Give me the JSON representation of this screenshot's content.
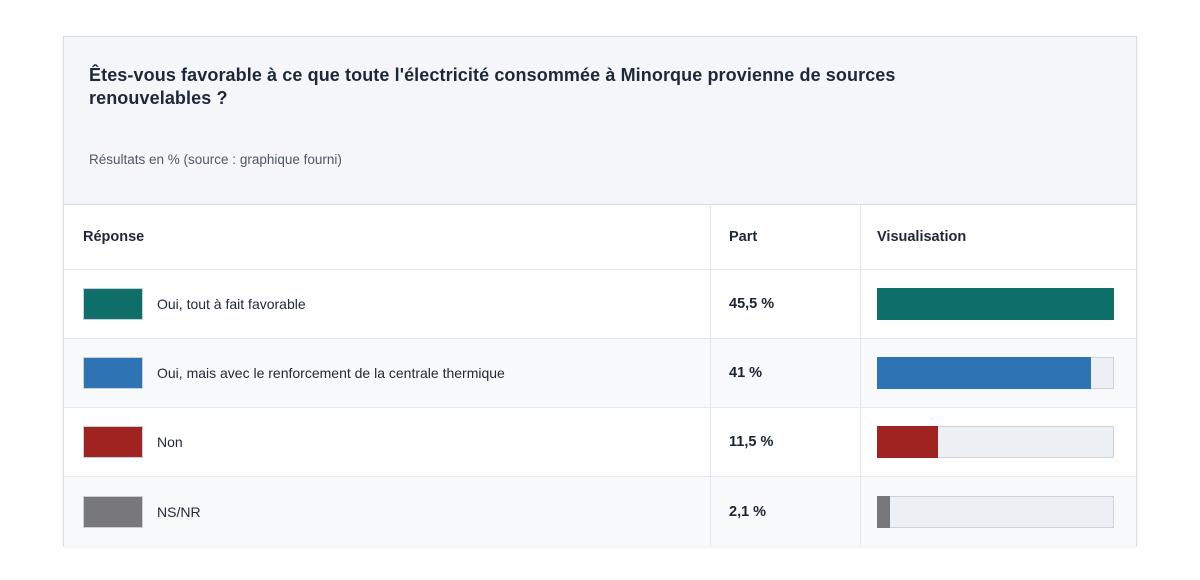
{
  "card": {
    "title": "Êtes-vous favorable à ce que toute l'électricité consommée à Minorque provienne de sources renouvelables ?",
    "subtitle": "Résultats en % (source : graphique fourni)"
  },
  "table": {
    "headers": {
      "response": "Réponse",
      "share": "Part",
      "visualization": "Visualisation"
    }
  },
  "chart_data": {
    "type": "bar",
    "orientation": "horizontal",
    "title": "Êtes-vous favorable à ce que toute l'électricité consommée à Minorque provienne de sources renouvelables ?",
    "subtitle": "Résultats en % (source : graphique fourni)",
    "categories": [
      "Oui, tout à fait favorable",
      "Oui, mais avec le renforcement de la centrale thermique",
      "Non",
      "NS/NR"
    ],
    "values": [
      45.5,
      41,
      11.5,
      2.1
    ],
    "value_labels": [
      "45,5 %",
      "41 %",
      "11,5 %",
      "2,1 %"
    ],
    "colors": [
      "#0d6f68",
      "#2e74b5",
      "#a02322",
      "#78787a"
    ],
    "unit": "%",
    "xlim": [
      0,
      45.5
    ],
    "legend_position": "none",
    "grid": false
  },
  "style_colors": {
    "card_background": "#f4f6f9",
    "card_border": "#d9dde3",
    "row_alt_background": "#f7f9fb",
    "bar_track": "#edf0f4",
    "text_primary": "#1e2838",
    "text_secondary": "#4f5863"
  }
}
